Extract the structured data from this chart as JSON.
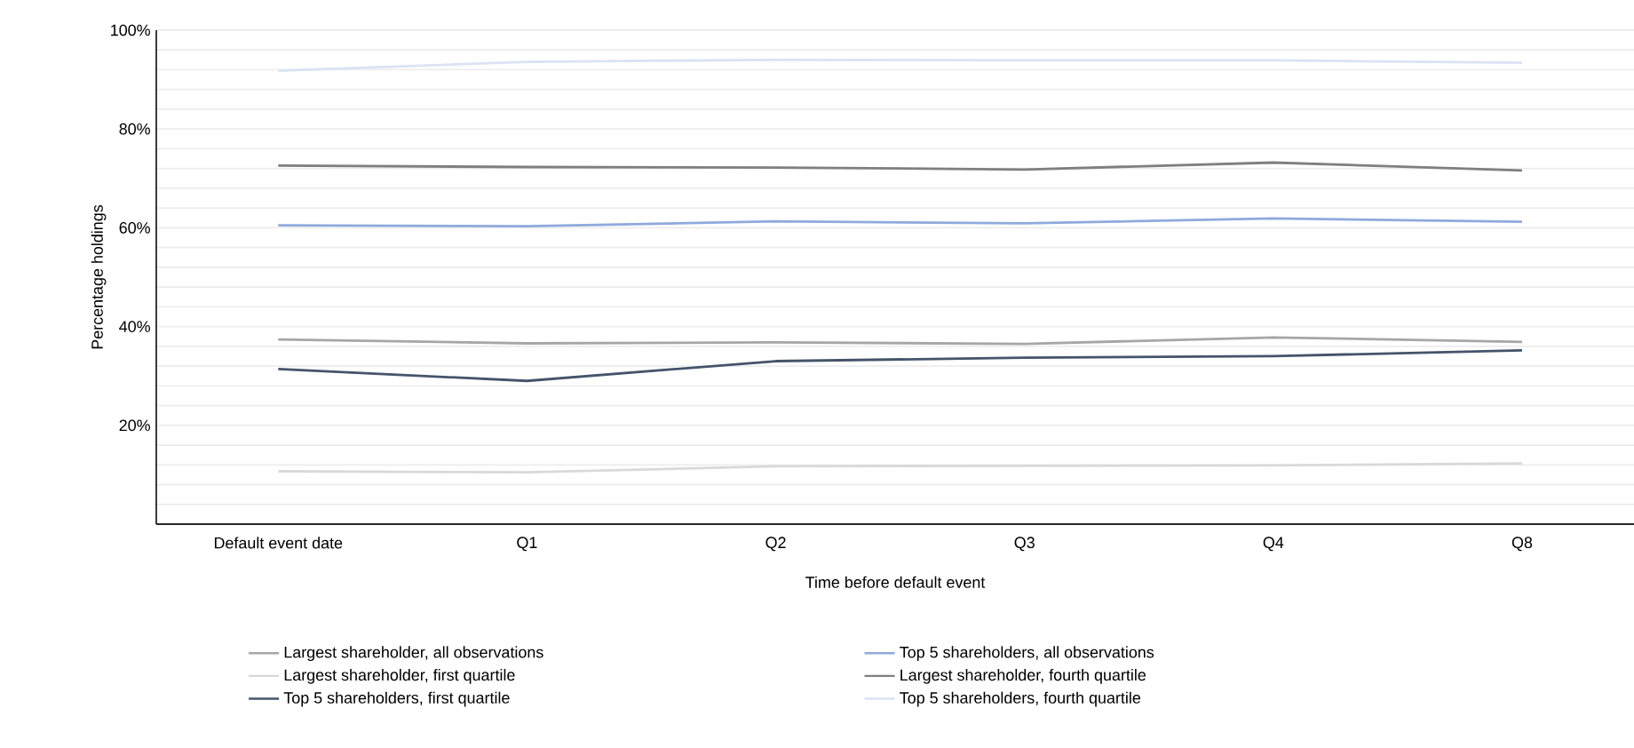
{
  "chart_data": {
    "type": "line",
    "categories": [
      "Default event date",
      "Q1",
      "Q2",
      "Q3",
      "Q4",
      "Q8"
    ],
    "xlabel": "Time before default event",
    "ylabel": "Percentage holdings",
    "ylim": [
      0,
      100
    ],
    "yticks": [
      {
        "value": 4,
        "label": null
      },
      {
        "value": 8,
        "label": null
      },
      {
        "value": 12,
        "label": null
      },
      {
        "value": 16,
        "label": null
      },
      {
        "value": 20,
        "label": "20%"
      },
      {
        "value": 24,
        "label": null
      },
      {
        "value": 28,
        "label": null
      },
      {
        "value": 32,
        "label": null
      },
      {
        "value": 36,
        "label": null
      },
      {
        "value": 40,
        "label": "40%"
      },
      {
        "value": 44,
        "label": null
      },
      {
        "value": 48,
        "label": null
      },
      {
        "value": 52,
        "label": null
      },
      {
        "value": 56,
        "label": null
      },
      {
        "value": 60,
        "label": "60%"
      },
      {
        "value": 64,
        "label": null
      },
      {
        "value": 68,
        "label": null
      },
      {
        "value": 72,
        "label": null
      },
      {
        "value": 76,
        "label": null
      },
      {
        "value": 80,
        "label": "80%"
      },
      {
        "value": 84,
        "label": null
      },
      {
        "value": 88,
        "label": null
      },
      {
        "value": 92,
        "label": null
      },
      {
        "value": 96,
        "label": null
      },
      {
        "value": 100,
        "label": "100%"
      }
    ],
    "grid": "y",
    "legend": "bottom",
    "marker": "none",
    "line_style": "solid",
    "series": [
      {
        "name": "Largest shareholder, all observations",
        "color": "#a6a6a6",
        "values": [
          37.4,
          36.6,
          36.8,
          36.5,
          37.8,
          36.9
        ]
      },
      {
        "name": "Top 5 shareholders, all observations",
        "color": "#8faadc",
        "values": [
          60.5,
          60.3,
          61.3,
          60.9,
          61.9,
          61.2
        ]
      },
      {
        "name": "Largest shareholder, first quartile",
        "color": "#d9d9d9",
        "values": [
          10.7,
          10.5,
          11.7,
          11.8,
          11.9,
          12.3
        ]
      },
      {
        "name": "Largest shareholder, fourth quartile",
        "color": "#7f7f7f",
        "values": [
          72.6,
          72.3,
          72.2,
          71.8,
          73.2,
          71.6
        ]
      },
      {
        "name": "Top 5 shareholders, first quartile",
        "color": "#44546a",
        "values": [
          31.4,
          29.0,
          33.0,
          33.7,
          34.0,
          35.2
        ]
      },
      {
        "name": "Top 5 shareholders, fourth quartile",
        "color": "#dae3f3",
        "values": [
          91.8,
          93.6,
          94.0,
          93.9,
          93.9,
          93.4
        ]
      }
    ]
  }
}
